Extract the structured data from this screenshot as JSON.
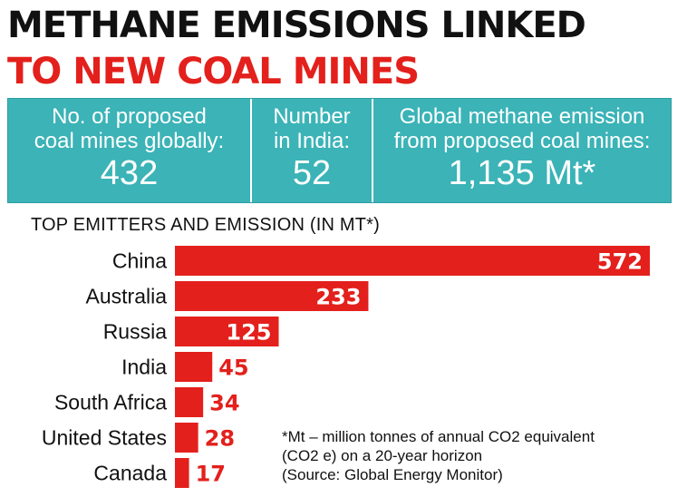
{
  "header": {
    "title_line1": "METHANE EMISSIONS LINKED",
    "title_line2": "TO NEW COAL MINES"
  },
  "stats": [
    {
      "label_line1": "No. of proposed",
      "label_line2": "coal mines globally:",
      "value": "432"
    },
    {
      "label_line1": "Number",
      "label_line2": "in India:",
      "value": "52"
    },
    {
      "label_line1": "Global methane emission",
      "label_line2": "from proposed coal mines:",
      "value": "1,135 Mt*"
    }
  ],
  "colors": {
    "bar": "#e3201c",
    "panel": "#3bb3b7",
    "title_accent": "#e3201c"
  },
  "chart_data": {
    "type": "bar",
    "orientation": "horizontal",
    "title": "TOP EMITTERS AND EMISSION (IN MT*)",
    "categories": [
      "China",
      "Australia",
      "Russia",
      "India",
      "South Africa",
      "United States",
      "Canada"
    ],
    "values": [
      572,
      233,
      125,
      45,
      34,
      28,
      17
    ],
    "value_labels": [
      "572",
      "233",
      "125",
      "45",
      "34",
      "28",
      "17"
    ],
    "xlim": [
      0,
      572
    ],
    "grid": false,
    "legend": "none"
  },
  "footnote": {
    "line1": "*Mt – million tonnes of annual CO2 equivalent",
    "line2": "(CO2 e) on a 20-year horizon",
    "line3": "(Source: Global Energy Monitor)"
  }
}
